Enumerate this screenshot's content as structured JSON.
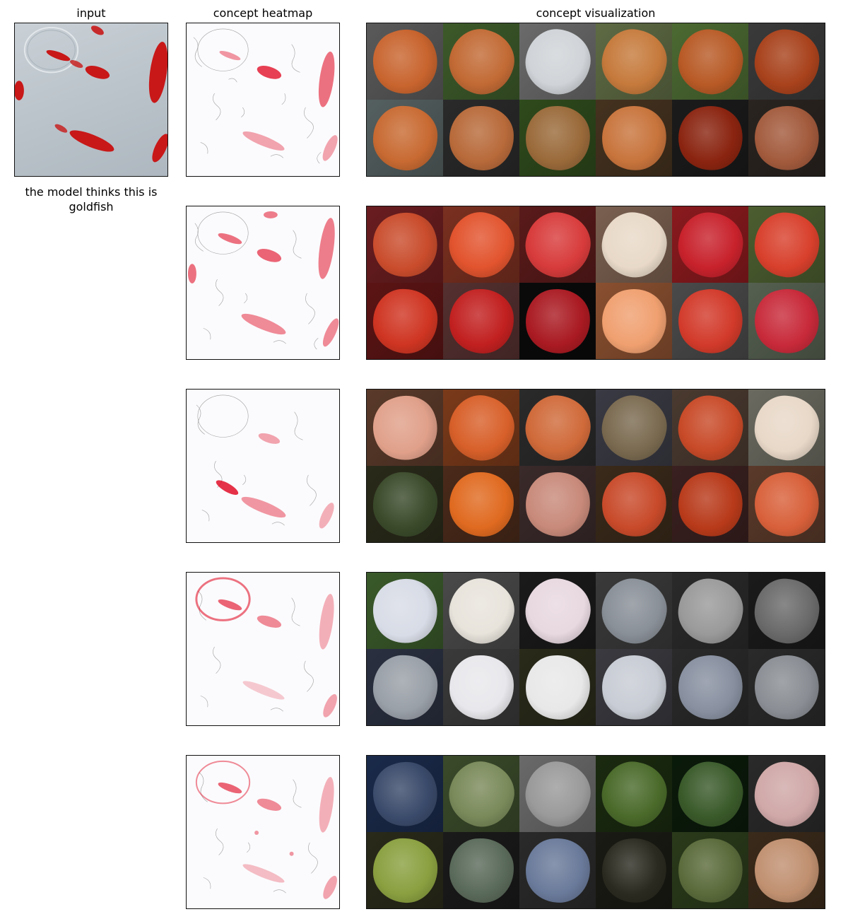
{
  "titles": {
    "input": "input",
    "heatmap": "concept heatmap",
    "visualization": "concept visualization"
  },
  "caption": "the model thinks this is goldfish",
  "colors": {
    "heat": "#e0001a",
    "edge": "#555555"
  },
  "rows": [
    {
      "tiles": [
        [
          "#5a5a5a",
          "#c8642e"
        ],
        [
          "#3d5a2a",
          "#c26a35"
        ],
        [
          "#6b6b6b",
          "#d0d4d8"
        ],
        [
          "#5e6b44",
          "#c67a3c"
        ],
        [
          "#4c6a32",
          "#b85a26"
        ],
        [
          "#3a3a3a",
          "#a8421c"
        ],
        [
          "#556060",
          "#c86a32"
        ],
        [
          "#2a2a2a",
          "#b86a3a"
        ],
        [
          "#2f4a1c",
          "#9a6a3a"
        ],
        [
          "#45321f",
          "#c8743c"
        ],
        [
          "#1b1b1b",
          "#8a2410"
        ],
        [
          "#2a2420",
          "#a25a3c"
        ]
      ]
    },
    {
      "tiles": [
        [
          "#6a1d20",
          "#c94c2c"
        ],
        [
          "#7a3020",
          "#e2542e"
        ],
        [
          "#5a1a1a",
          "#d83b3b"
        ],
        [
          "#7a6050",
          "#e8d9c8"
        ],
        [
          "#8a1a1e",
          "#c8222c"
        ],
        [
          "#4c5e30",
          "#d8402c"
        ],
        [
          "#5c1414",
          "#cf3522"
        ],
        [
          "#553030",
          "#c22020"
        ],
        [
          "#0a0a0a",
          "#aa1a22"
        ],
        [
          "#8a5030",
          "#f0a070"
        ],
        [
          "#4a4a4a",
          "#d23a2a"
        ],
        [
          "#556050",
          "#c82a3a"
        ]
      ]
    },
    {
      "tiles": [
        [
          "#5a3a2a",
          "#e0a08a"
        ],
        [
          "#7a3a1a",
          "#d8602a"
        ],
        [
          "#2a2a2a",
          "#d06a3a"
        ],
        [
          "#3a3a44",
          "#7a6a50"
        ],
        [
          "#4a3a30",
          "#c84a28"
        ],
        [
          "#6a6a60",
          "#e8d8c8"
        ],
        [
          "#2a2a1a",
          "#3a4a2a"
        ],
        [
          "#4a2a1a",
          "#e06a20"
        ],
        [
          "#3a2a2a",
          "#c88a7a"
        ],
        [
          "#3a2a1a",
          "#c84a2a"
        ],
        [
          "#3a2020",
          "#b83a1a"
        ],
        [
          "#5a3a2a",
          "#d8603a"
        ]
      ]
    },
    {
      "tiles": [
        [
          "#3a5a2a",
          "#d8dce6"
        ],
        [
          "#4a4a4a",
          "#e8e4dc"
        ],
        [
          "#1a1a1a",
          "#e8d8e0"
        ],
        [
          "#3a3a3a",
          "#8a9098"
        ],
        [
          "#2a2a2a",
          "#9a9a9a"
        ],
        [
          "#1a1a1a",
          "#6a6a6a"
        ],
        [
          "#2a3040",
          "#9aa0a8"
        ],
        [
          "#3a3a3a",
          "#e8e8ec"
        ],
        [
          "#2a2a1a",
          "#e8e8e8"
        ],
        [
          "#3a3a40",
          "#c8ccd4"
        ],
        [
          "#2a2a2a",
          "#8890a0"
        ],
        [
          "#2a2a2a",
          "#8a8e94"
        ]
      ]
    },
    {
      "tiles": [
        [
          "#1a2a4a",
          "#3a4a6a"
        ],
        [
          "#3a4a2a",
          "#7a8a5a"
        ],
        [
          "#6a6a6a",
          "#9a9a9a"
        ],
        [
          "#1a2a10",
          "#4a6a2a"
        ],
        [
          "#0a1a0a",
          "#3a5a2a"
        ],
        [
          "#2a2a2a",
          "#d0a8a8"
        ],
        [
          "#2a2a1a",
          "#8aa040"
        ],
        [
          "#1a1a1a",
          "#5a6a5a"
        ],
        [
          "#2a2a2a",
          "#6a7a9a"
        ],
        [
          "#1a1a14",
          "#2a2a20"
        ],
        [
          "#2a3a1a",
          "#5a6a3a"
        ],
        [
          "#3a2a1a",
          "#c09070"
        ]
      ]
    }
  ]
}
